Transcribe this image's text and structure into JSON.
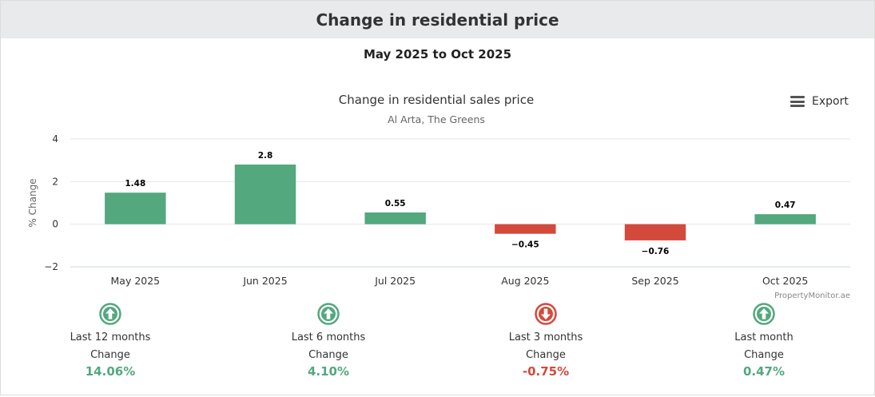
{
  "card": {
    "title": "Change in residential price",
    "period": "May 2025 to Oct 2025"
  },
  "toolbar": {
    "export_label": "Export",
    "export_icon": "menu-icon"
  },
  "chart_data": {
    "type": "bar",
    "title": "Change in residential sales price",
    "subtitle": "Al Arta, The Greens",
    "xlabel": "",
    "ylabel": "% Change",
    "categories": [
      "May 2025",
      "Jun 2025",
      "Jul 2025",
      "Aug 2025",
      "Sep 2025",
      "Oct 2025"
    ],
    "values": [
      1.48,
      2.8,
      0.55,
      -0.45,
      -0.76,
      0.47
    ],
    "data_labels": [
      "1.48",
      "2.8",
      "0.55",
      "−0.45",
      "−0.76",
      "0.47"
    ],
    "ylim": [
      -2,
      4
    ],
    "yticks": [
      -2,
      0,
      2,
      4
    ],
    "ytick_labels": [
      "−2",
      "0",
      "2",
      "4"
    ],
    "grid": true,
    "legend": "none",
    "credit": "PropertyMonitor.ae",
    "colors": {
      "positive": "#53a87e",
      "negative": "#d34a3c"
    }
  },
  "summary": [
    {
      "period": "Last 12 months",
      "label": "Change",
      "value": "14.06%",
      "direction": "up",
      "icon": "arrow-up-circle-icon",
      "color": "#53a87e"
    },
    {
      "period": "Last 6 months",
      "label": "Change",
      "value": "4.10%",
      "direction": "up",
      "icon": "arrow-up-circle-icon",
      "color": "#53a87e"
    },
    {
      "period": "Last 3 months",
      "label": "Change",
      "value": "-0.75%",
      "direction": "down",
      "icon": "arrow-down-circle-icon",
      "color": "#d34a3c"
    },
    {
      "period": "Last month",
      "label": "Change",
      "value": "0.47%",
      "direction": "up",
      "icon": "arrow-up-circle-icon",
      "color": "#53a87e"
    }
  ]
}
